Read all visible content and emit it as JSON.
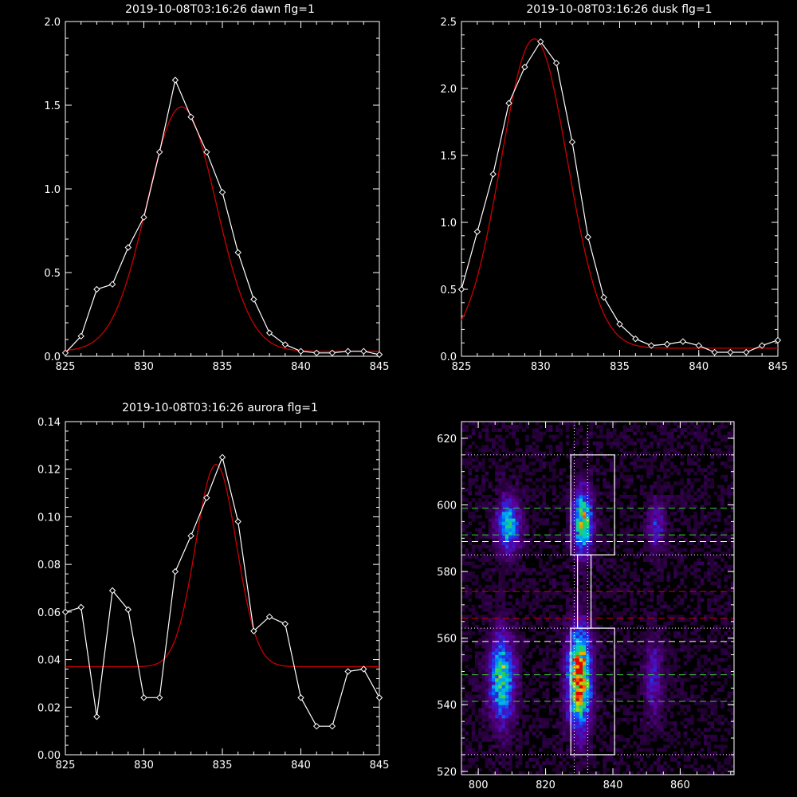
{
  "chart_data": [
    {
      "type": "line",
      "title": "2019-10-08T03:16:26 dawn flg=1",
      "xlim": [
        825,
        845
      ],
      "ylim": [
        0,
        2.0
      ],
      "xticks": [
        "825",
        "830",
        "835",
        "840",
        "845"
      ],
      "yticks": [
        "0.0",
        "0.5",
        "1.0",
        "1.5",
        "2.0"
      ],
      "series": [
        {
          "color": "#ffffff",
          "markers": "diamond",
          "x": [
            825,
            826,
            827,
            828,
            829,
            830,
            831,
            832,
            833,
            834,
            835,
            836,
            837,
            838,
            839,
            840,
            841,
            842,
            843,
            844,
            845
          ],
          "y": [
            0.02,
            0.12,
            0.4,
            0.43,
            0.65,
            0.83,
            1.22,
            1.65,
            1.43,
            1.22,
            0.98,
            0.62,
            0.34,
            0.14,
            0.07,
            0.03,
            0.02,
            0.02,
            0.03,
            0.03,
            0.01
          ]
        },
        {
          "color": "#cc0000",
          "fit": "gaussian",
          "amplitude": 1.46,
          "center": 832.4,
          "sigma": 2.2,
          "offset": 0.03
        }
      ]
    },
    {
      "type": "line",
      "title": "2019-10-08T03:16:26 dusk flg=1",
      "xlim": [
        825,
        845
      ],
      "ylim": [
        0,
        2.5
      ],
      "xticks": [
        "825",
        "830",
        "835",
        "840",
        "845"
      ],
      "yticks": [
        "0.0",
        "0.5",
        "1.0",
        "1.5",
        "2.0",
        "2.5"
      ],
      "series": [
        {
          "color": "#ffffff",
          "markers": "diamond",
          "x": [
            825,
            826,
            827,
            828,
            829,
            830,
            831,
            832,
            833,
            834,
            835,
            836,
            837,
            838,
            839,
            840,
            841,
            842,
            843,
            844,
            845
          ],
          "y": [
            0.5,
            0.93,
            1.36,
            1.89,
            2.16,
            2.35,
            2.19,
            1.6,
            0.89,
            0.44,
            0.24,
            0.13,
            0.08,
            0.09,
            0.11,
            0.08,
            0.03,
            0.03,
            0.03,
            0.08,
            0.12
          ]
        },
        {
          "color": "#cc0000",
          "fit": "gaussian",
          "amplitude": 2.31,
          "center": 829.6,
          "sigma": 2.1,
          "offset": 0.06
        }
      ]
    },
    {
      "type": "line",
      "title": "2019-10-08T03:16:26 aurora flg=1",
      "xlim": [
        825,
        845
      ],
      "ylim": [
        0,
        0.14
      ],
      "xticks": [
        "825",
        "830",
        "835",
        "840",
        "845"
      ],
      "yticks": [
        "0.00",
        "0.02",
        "0.04",
        "0.06",
        "0.08",
        "0.10",
        "0.12",
        "0.14"
      ],
      "series": [
        {
          "color": "#ffffff",
          "markers": "diamond",
          "x": [
            825,
            826,
            827,
            828,
            829,
            830,
            831,
            832,
            833,
            834,
            835,
            836,
            837,
            838,
            839,
            840,
            841,
            842,
            843,
            844,
            845
          ],
          "y": [
            0.06,
            0.062,
            0.016,
            0.069,
            0.061,
            0.024,
            0.024,
            0.077,
            0.092,
            0.108,
            0.125,
            0.098,
            0.052,
            0.058,
            0.055,
            0.024,
            0.012,
            0.012,
            0.035,
            0.036,
            0.024
          ]
        },
        {
          "color": "#cc0000",
          "fit": "gaussian",
          "amplitude": 0.085,
          "center": 834.6,
          "sigma": 1.3,
          "offset": 0.037
        }
      ]
    },
    {
      "type": "heatmap",
      "xlim": [
        795,
        876
      ],
      "ylim": [
        519,
        625
      ],
      "xticks": [
        "800",
        "820",
        "840",
        "860"
      ],
      "yticks": [
        "520",
        "540",
        "560",
        "580",
        "600",
        "620"
      ],
      "blobs": [
        {
          "x": 809,
          "y": 594,
          "sx": 2.4,
          "sy": 5.5,
          "amp": 0.55
        },
        {
          "x": 831,
          "y": 595,
          "sx": 2.0,
          "sy": 6.5,
          "amp": 0.72
        },
        {
          "x": 853,
          "y": 594,
          "sx": 1.8,
          "sy": 5.0,
          "amp": 0.28
        },
        {
          "x": 807,
          "y": 548,
          "sx": 2.6,
          "sy": 9.0,
          "amp": 0.62
        },
        {
          "x": 830,
          "y": 548,
          "sx": 2.4,
          "sy": 10.0,
          "amp": 0.95
        },
        {
          "x": 852,
          "y": 548,
          "sx": 1.8,
          "sy": 8.0,
          "amp": 0.28
        }
      ],
      "boxes": [
        {
          "x0": 827.5,
          "x1": 840.5,
          "y0": 585,
          "y1": 615
        },
        {
          "x0": 829.5,
          "x1": 833.5,
          "y0": 563,
          "y1": 585
        },
        {
          "x0": 827.5,
          "x1": 840.5,
          "y0": 525,
          "y1": 563
        }
      ],
      "vlines": [
        {
          "x": 828.5,
          "color": "#ffffff",
          "style": "dotted"
        },
        {
          "x": 832.5,
          "color": "#ffffff",
          "style": "dotted"
        }
      ],
      "hlines": [
        {
          "y": 615,
          "color": "#ffffff",
          "style": "dotted"
        },
        {
          "y": 599,
          "color": "#33cc33",
          "style": "dashed"
        },
        {
          "y": 591,
          "color": "#33cc33",
          "style": "dashed"
        },
        {
          "y": 589,
          "color": "#ffffff",
          "style": "dashed"
        },
        {
          "y": 585,
          "color": "#ffffff",
          "style": "dotted"
        },
        {
          "y": 574,
          "color": "#cc0000",
          "style": "dashed"
        },
        {
          "y": 566,
          "color": "#cc0000",
          "style": "dashed"
        },
        {
          "y": 563,
          "color": "#ffffff",
          "style": "dotted"
        },
        {
          "y": 559,
          "color": "#ffffff",
          "style": "dashed"
        },
        {
          "y": 549,
          "color": "#33cc33",
          "style": "dashed"
        },
        {
          "y": 541,
          "color": "#33cc33",
          "style": "dashed"
        },
        {
          "y": 525,
          "color": "#ffffff",
          "style": "dotted"
        }
      ]
    }
  ]
}
